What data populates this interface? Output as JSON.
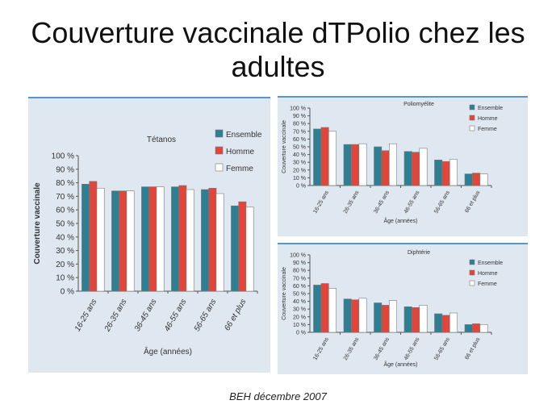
{
  "slide": {
    "title": "Couverture vaccinale dTPolio chez les adultes",
    "source": "BEH décembre 2007"
  },
  "legend": [
    "Ensemble",
    "Homme",
    "Femme"
  ],
  "colors": {
    "Ensemble": "#2d7f91",
    "Homme": "#e2453a",
    "Femme": "#ffffff",
    "axis": "#555555"
  },
  "chart_data": [
    {
      "id": "tetanos",
      "type": "bar",
      "title": "Tétanos",
      "xlabel": "Âge (années)",
      "ylabel": "Couverture vaccinale",
      "categories": [
        "16-25 ans",
        "26-35 ans",
        "36-45 ans",
        "46-55 ans",
        "56-65 ans",
        "66 et plus"
      ],
      "yticks": [
        "0 %",
        "10 %",
        "20 %",
        "30 %",
        "40 %",
        "50 %",
        "60 %",
        "70 %",
        "80 %",
        "90 %",
        "100 %"
      ],
      "ylim": [
        0,
        100
      ],
      "series": [
        {
          "name": "Ensemble",
          "values": [
            79,
            74,
            77,
            77,
            75,
            63
          ]
        },
        {
          "name": "Homme",
          "values": [
            81,
            74,
            77,
            78,
            76,
            66
          ]
        },
        {
          "name": "Femme",
          "values": [
            76,
            74,
            77,
            75,
            72,
            62
          ]
        }
      ]
    },
    {
      "id": "polio",
      "type": "bar",
      "title": "Poliomyélite",
      "xlabel": "Âge (années)",
      "ylabel": "Couverture vaccinale",
      "categories": [
        "16-25 ans",
        "26-35 ans",
        "36-45 ans",
        "46-55 ans",
        "56-65 ans",
        "66 et plus"
      ],
      "yticks": [
        "0 %",
        "10 %",
        "20 %",
        "30 %",
        "40 %",
        "50 %",
        "60 %",
        "70 %",
        "80 %",
        "90 %",
        "100 %"
      ],
      "ylim": [
        0,
        100
      ],
      "series": [
        {
          "name": "Ensemble",
          "values": [
            73,
            53,
            50,
            44,
            33,
            15
          ]
        },
        {
          "name": "Homme",
          "values": [
            75,
            53,
            45,
            43,
            31,
            16
          ]
        },
        {
          "name": "Femme",
          "values": [
            70,
            54,
            54,
            48,
            34,
            15
          ]
        }
      ]
    },
    {
      "id": "diphterie",
      "type": "bar",
      "title": "Diphtérie",
      "xlabel": "Âge (années)",
      "ylabel": "Couverture vaccinale",
      "categories": [
        "16-25 ans",
        "26-35 ans",
        "36-45 ans",
        "46-55 ans",
        "56-65 ans",
        "66 et plus"
      ],
      "yticks": [
        "0 %",
        "10 %",
        "20 %",
        "30 %",
        "40 %",
        "50 %",
        "60 %",
        "70 %",
        "80 %",
        "90 %",
        "100 %"
      ],
      "ylim": [
        0,
        100
      ],
      "series": [
        {
          "name": "Ensemble",
          "values": [
            61,
            43,
            38,
            33,
            24,
            10
          ]
        },
        {
          "name": "Homme",
          "values": [
            63,
            42,
            35,
            32,
            22,
            11
          ]
        },
        {
          "name": "Femme",
          "values": [
            57,
            44,
            41,
            35,
            25,
            10
          ]
        }
      ]
    }
  ]
}
